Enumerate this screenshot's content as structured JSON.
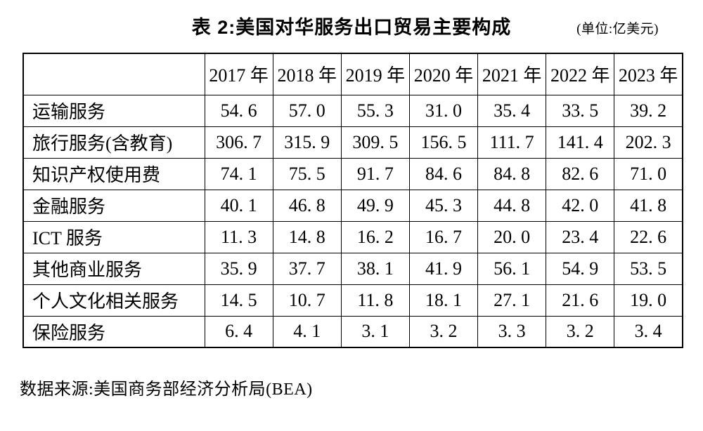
{
  "title": "表 2:美国对华服务出口贸易主要构成",
  "unit": "(单位:亿美元)",
  "source": "数据来源:美国商务部经济分析局(BEA)",
  "table": {
    "corner": "",
    "columns": [
      "2017 年",
      "2018 年",
      "2019 年",
      "2020 年",
      "2021 年",
      "2022 年",
      "2023 年"
    ],
    "rows": [
      {
        "label": "运输服务",
        "values": [
          "54. 6",
          "57. 0",
          "55. 3",
          "31. 0",
          "35. 4",
          "33. 5",
          "39. 2"
        ]
      },
      {
        "label": "旅行服务(含教育)",
        "values": [
          "306. 7",
          "315. 9",
          "309. 5",
          "156. 5",
          "111. 7",
          "141. 4",
          "202. 3"
        ]
      },
      {
        "label": "知识产权使用费",
        "values": [
          "74. 1",
          "75. 5",
          "91. 7",
          "84. 6",
          "84. 8",
          "82. 6",
          "71. 0"
        ]
      },
      {
        "label": "金融服务",
        "values": [
          "40. 1",
          "46. 8",
          "49. 9",
          "45. 3",
          "44. 8",
          "42. 0",
          "41. 8"
        ]
      },
      {
        "label": "ICT 服务",
        "values": [
          "11. 3",
          "14. 8",
          "16. 2",
          "16. 7",
          "20. 0",
          "23. 4",
          "22. 6"
        ]
      },
      {
        "label": "其他商业服务",
        "values": [
          "35. 9",
          "37. 7",
          "38. 1",
          "41. 9",
          "56. 1",
          "54. 9",
          "53. 5"
        ]
      },
      {
        "label": "个人文化相关服务",
        "values": [
          "14. 5",
          "10. 7",
          "11. 8",
          "18. 1",
          "27. 1",
          "21. 6",
          "19. 0"
        ]
      },
      {
        "label": "保险服务",
        "values": [
          "6. 4",
          "4. 1",
          "3. 1",
          "3. 2",
          "3. 3",
          "3. 2",
          "3. 4"
        ]
      }
    ]
  },
  "chart_data": {
    "type": "table",
    "title": "表 2:美国对华服务出口贸易主要构成",
    "unit": "亿美元",
    "categories": [
      2017,
      2018,
      2019,
      2020,
      2021,
      2022,
      2023
    ],
    "series": [
      {
        "name": "运输服务",
        "values": [
          54.6,
          57.0,
          55.3,
          31.0,
          35.4,
          33.5,
          39.2
        ]
      },
      {
        "name": "旅行服务(含教育)",
        "values": [
          306.7,
          315.9,
          309.5,
          156.5,
          111.7,
          141.4,
          202.3
        ]
      },
      {
        "name": "知识产权使用费",
        "values": [
          74.1,
          75.5,
          91.7,
          84.6,
          84.8,
          82.6,
          71.0
        ]
      },
      {
        "name": "金融服务",
        "values": [
          40.1,
          46.8,
          49.9,
          45.3,
          44.8,
          42.0,
          41.8
        ]
      },
      {
        "name": "ICT 服务",
        "values": [
          11.3,
          14.8,
          16.2,
          16.7,
          20.0,
          23.4,
          22.6
        ]
      },
      {
        "name": "其他商业服务",
        "values": [
          35.9,
          37.7,
          38.1,
          41.9,
          56.1,
          54.9,
          53.5
        ]
      },
      {
        "name": "个人文化相关服务",
        "values": [
          14.5,
          10.7,
          11.8,
          18.1,
          27.1,
          21.6,
          19.0
        ]
      },
      {
        "name": "保险服务",
        "values": [
          6.4,
          4.1,
          3.1,
          3.2,
          3.3,
          3.2,
          3.4
        ]
      }
    ],
    "source": "美国商务部经济分析局(BEA)"
  }
}
